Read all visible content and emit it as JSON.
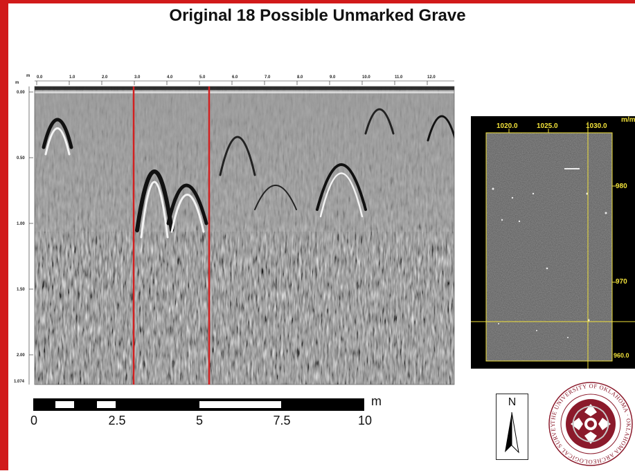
{
  "title": "Original 18 Possible Unmarked Grave",
  "profile": {
    "x_ticks": [
      "0.0",
      "1.0",
      "2.0",
      "3.0",
      "4.0",
      "5.0",
      "6.0",
      "7.0",
      "8.0",
      "9.0",
      "10.0",
      "11.0",
      "12.0"
    ],
    "y_ticks": [
      "0.00",
      "0.50",
      "1.00",
      "1.50",
      "2.00"
    ],
    "bottom_label": "1.074",
    "corner_labels": [
      "m",
      "m"
    ],
    "marker_color": "#d22020",
    "marker_positions_m": [
      3.0,
      5.3
    ],
    "x_range_m": [
      0,
      12.9
    ]
  },
  "scalebar": {
    "labels": [
      "0",
      "2.5",
      "5",
      "7.5",
      "10"
    ],
    "unit": "m"
  },
  "slice": {
    "x_labels": [
      "1020.0",
      "1025.0",
      "1030.0"
    ],
    "y_labels": [
      "980",
      "970"
    ],
    "unit": "m/m",
    "bottom_label": "960.0",
    "accent_color": "#f2e23a"
  },
  "north": {
    "letter": "N"
  },
  "logo": {
    "ring_text": "THE UNIVERSITY OF OKLAHOMA · OKLAHOMA ARCHEOLOGICAL SURVEY",
    "brand_color": "#8b1a2b"
  }
}
